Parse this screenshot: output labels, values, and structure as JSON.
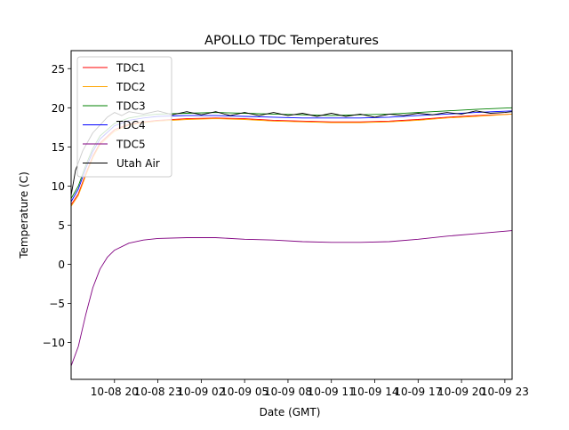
{
  "chart_data": {
    "type": "line",
    "title": "APOLLO TDC Temperatures",
    "xlabel": "Date (GMT)",
    "ylabel": "Temperature (C)",
    "x_unit": "hours since 10-08 17:00 GMT",
    "xlim": [
      0,
      30.5
    ],
    "ylim": [
      -14.7,
      27.3
    ],
    "x_ticks": [
      {
        "x": 3,
        "label": "10-08 20"
      },
      {
        "x": 6,
        "label": "10-08 23"
      },
      {
        "x": 9,
        "label": "10-09 02"
      },
      {
        "x": 12,
        "label": "10-09 05"
      },
      {
        "x": 15,
        "label": "10-09 08"
      },
      {
        "x": 18,
        "label": "10-09 11"
      },
      {
        "x": 21,
        "label": "10-09 14"
      },
      {
        "x": 24,
        "label": "10-09 17"
      },
      {
        "x": 27,
        "label": "10-09 20"
      },
      {
        "x": 30,
        "label": "10-09 23"
      }
    ],
    "y_ticks": [
      -10,
      -5,
      0,
      5,
      10,
      15,
      20,
      25
    ],
    "grid": false,
    "legend_position": "upper-left",
    "series": [
      {
        "name": "TDC1",
        "color": "#ff0000",
        "x": [
          0,
          0.5,
          1,
          1.5,
          2,
          3,
          4,
          5,
          6,
          8,
          10,
          12,
          14,
          16,
          18,
          20,
          22,
          24,
          26,
          28,
          30.5
        ],
        "y": [
          7.6,
          9.0,
          11.5,
          13.8,
          15.5,
          17.2,
          17.9,
          18.2,
          18.4,
          18.6,
          18.7,
          18.6,
          18.4,
          18.3,
          18.2,
          18.2,
          18.3,
          18.5,
          18.8,
          19.0,
          19.2
        ]
      },
      {
        "name": "TDC2",
        "color": "#ffa500",
        "x": [
          0,
          0.5,
          1,
          1.5,
          2,
          3,
          4,
          5,
          6,
          8,
          10,
          12,
          14,
          16,
          18,
          20,
          22,
          24,
          26,
          28,
          30.5
        ],
        "y": [
          7.4,
          8.8,
          11.3,
          13.6,
          15.3,
          17.0,
          17.8,
          18.1,
          18.3,
          18.5,
          18.6,
          18.5,
          18.3,
          18.2,
          18.1,
          18.1,
          18.2,
          18.4,
          18.7,
          18.9,
          19.2
        ]
      },
      {
        "name": "TDC3",
        "color": "#008000",
        "x": [
          0,
          0.5,
          1,
          1.5,
          2,
          3,
          4,
          5,
          6,
          8,
          10,
          12,
          14,
          16,
          18,
          20,
          22,
          24,
          26,
          28,
          30.5
        ],
        "y": [
          8.4,
          10.0,
          12.6,
          14.8,
          16.4,
          18.0,
          18.7,
          19.0,
          19.2,
          19.3,
          19.4,
          19.3,
          19.2,
          19.1,
          19.0,
          19.1,
          19.2,
          19.4,
          19.6,
          19.8,
          20.0
        ]
      },
      {
        "name": "TDC4",
        "color": "#0000ff",
        "x": [
          0,
          0.5,
          1,
          1.5,
          2,
          3,
          4,
          5,
          6,
          8,
          10,
          12,
          14,
          16,
          18,
          20,
          22,
          24,
          26,
          28,
          30.5
        ],
        "y": [
          8.0,
          9.6,
          12.2,
          14.4,
          16.0,
          17.7,
          18.4,
          18.7,
          18.9,
          19.0,
          19.0,
          18.9,
          18.8,
          18.7,
          18.7,
          18.7,
          18.8,
          19.0,
          19.2,
          19.4,
          19.6
        ]
      },
      {
        "name": "TDC5",
        "color": "#800080",
        "x": [
          0,
          0.5,
          1,
          1.5,
          2,
          2.5,
          3,
          4,
          5,
          6,
          8,
          10,
          12,
          14,
          16,
          18,
          20,
          22,
          24,
          26,
          28,
          30.5
        ],
        "y": [
          -13.0,
          -10.5,
          -6.5,
          -3.0,
          -0.6,
          0.9,
          1.8,
          2.7,
          3.1,
          3.3,
          3.4,
          3.4,
          3.2,
          3.1,
          2.9,
          2.8,
          2.8,
          2.9,
          3.2,
          3.6,
          3.9,
          4.3
        ]
      },
      {
        "name": "Utah Air",
        "color": "#000000",
        "x": [
          0,
          0.3,
          0.8,
          1.5,
          2.5,
          3.0,
          3.5,
          4,
          5,
          6,
          7,
          8,
          9,
          10,
          11,
          12,
          13,
          14,
          15,
          16,
          17,
          18,
          19,
          20,
          21,
          22,
          23,
          24,
          25,
          26,
          27,
          28,
          29,
          30,
          30.5
        ],
        "y": [
          8.8,
          12.0,
          14.5,
          16.8,
          18.8,
          19.4,
          19.0,
          19.5,
          19.2,
          19.6,
          19.1,
          19.5,
          19.1,
          19.5,
          19.0,
          19.4,
          19.0,
          19.4,
          19.0,
          19.3,
          18.9,
          19.3,
          18.9,
          19.2,
          18.8,
          19.2,
          19.0,
          19.3,
          19.1,
          19.4,
          19.2,
          19.6,
          19.3,
          19.4,
          19.5
        ]
      }
    ]
  }
}
